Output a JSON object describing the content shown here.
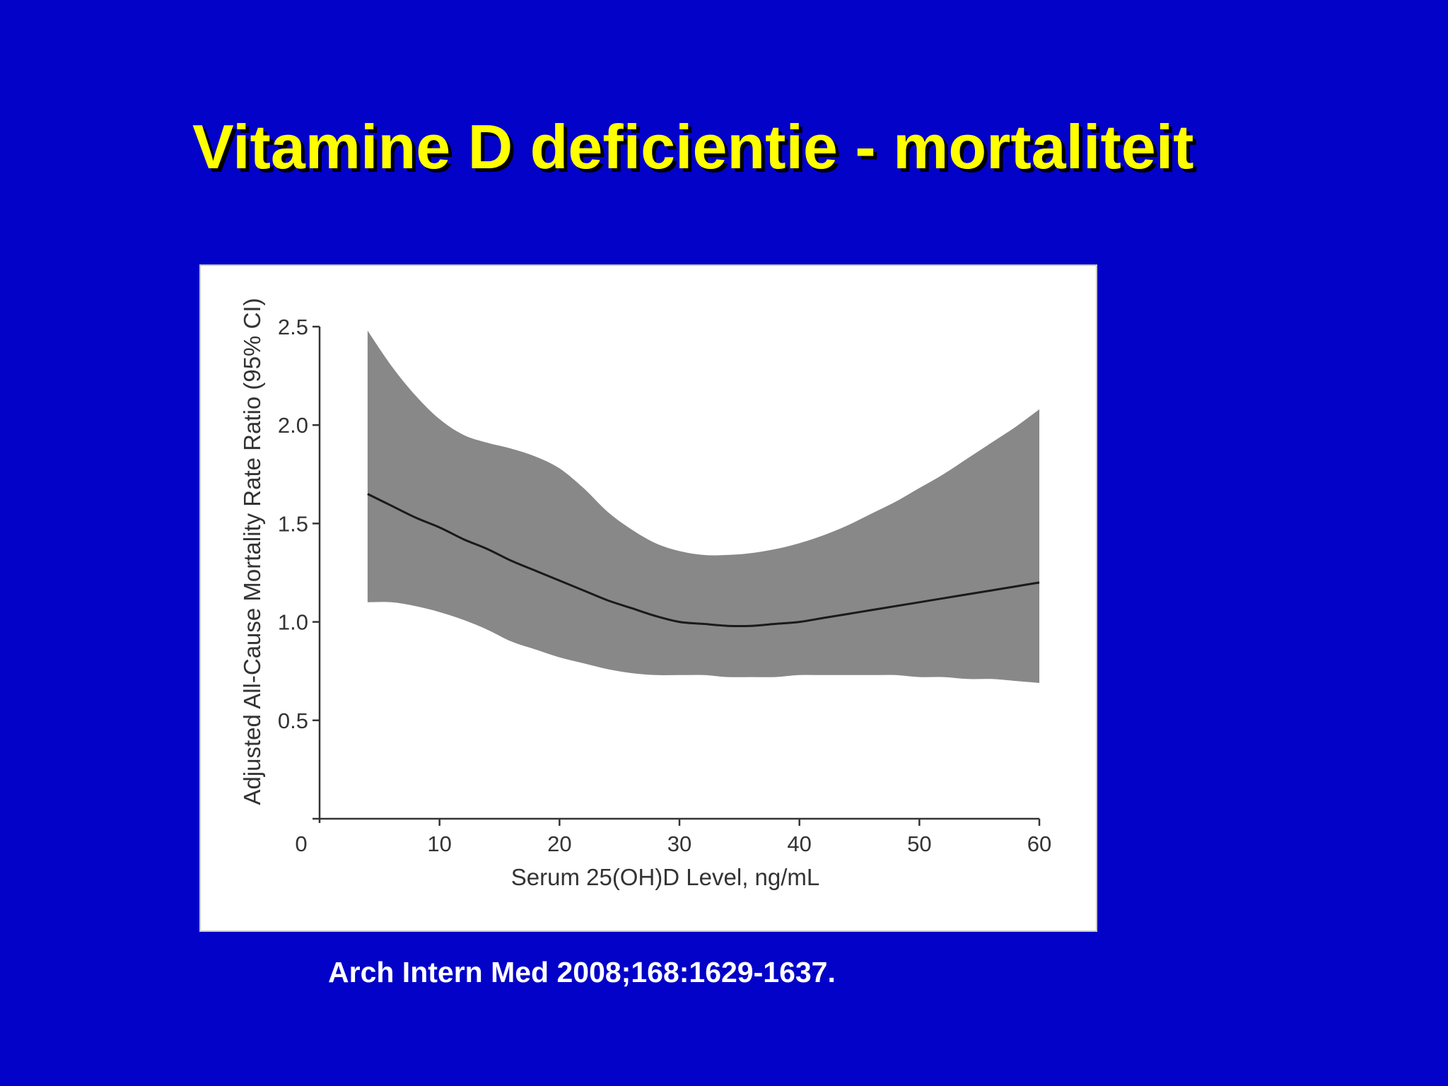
{
  "slide": {
    "title": "Vitamine D deficientie - mortaliteit",
    "citation": "Arch Intern Med 2008;168:1629-1637.",
    "background_color": "#0202c8",
    "title_color": "#ffff00"
  },
  "chart_data": {
    "type": "area",
    "xlabel": "Serum 25(OH)D Level, ng/mL",
    "ylabel": "Adjusted All-Cause Mortality Rate Ratio (95% CI)",
    "xlim": [
      0,
      60
    ],
    "ylim": [
      0,
      2.5
    ],
    "x_ticks": [
      0,
      10,
      20,
      30,
      40,
      50,
      60
    ],
    "x_tick_labels": [
      "0",
      "10",
      "20",
      "30",
      "40",
      "50",
      "60"
    ],
    "y_ticks": [
      0.5,
      1.0,
      1.5,
      2.0,
      2.5
    ],
    "y_tick_labels": [
      "0.5",
      "1.0",
      "1.5",
      "2.0",
      "2.5"
    ],
    "grid": false,
    "band_color": "#888888",
    "line_color": "#1a1a1a",
    "x": [
      4,
      6,
      8,
      10,
      12,
      14,
      16,
      18,
      20,
      22,
      24,
      26,
      28,
      30,
      32,
      34,
      36,
      38,
      40,
      42,
      44,
      46,
      48,
      50,
      52,
      54,
      56,
      58,
      60
    ],
    "series": [
      {
        "values": [
          1.65,
          1.59,
          1.53,
          1.48,
          1.42,
          1.37,
          1.31,
          1.26,
          1.21,
          1.16,
          1.11,
          1.07,
          1.03,
          1.0,
          0.99,
          0.98,
          0.98,
          0.99,
          1.0,
          1.02,
          1.04,
          1.06,
          1.08,
          1.1,
          1.12,
          1.14,
          1.16,
          1.18,
          1.2
        ]
      }
    ],
    "ci_upper": [
      2.48,
      2.3,
      2.15,
      2.03,
      1.95,
      1.91,
      1.88,
      1.84,
      1.78,
      1.68,
      1.56,
      1.47,
      1.4,
      1.36,
      1.34,
      1.34,
      1.35,
      1.37,
      1.4,
      1.44,
      1.49,
      1.55,
      1.61,
      1.68,
      1.75,
      1.83,
      1.91,
      1.99,
      2.08
    ],
    "ci_lower": [
      1.1,
      1.1,
      1.08,
      1.05,
      1.01,
      0.96,
      0.9,
      0.86,
      0.82,
      0.79,
      0.76,
      0.74,
      0.73,
      0.73,
      0.73,
      0.72,
      0.72,
      0.72,
      0.73,
      0.73,
      0.73,
      0.73,
      0.73,
      0.72,
      0.72,
      0.71,
      0.71,
      0.7,
      0.69
    ]
  }
}
